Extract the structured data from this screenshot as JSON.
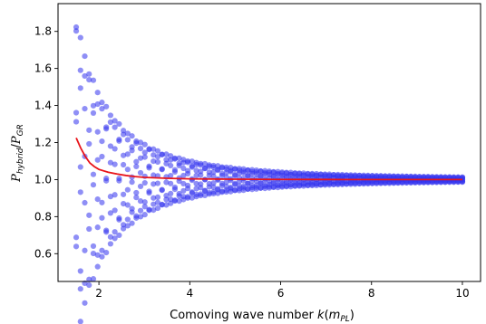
{
  "chart_data": {
    "type": "scatter",
    "title": "",
    "xlabel": {
      "main": "Comoving wave number ",
      "italic": "k",
      "paren_open": "(",
      "italic2": "m",
      "sub": "PL",
      "paren_close": ")"
    },
    "ylabel": {
      "num": "P",
      "num_sub": "hybrid",
      "slash": "/",
      "den": "P",
      "den_sub": "GR"
    },
    "xlim": [
      1.1,
      10.4
    ],
    "ylim": [
      0.45,
      1.95
    ],
    "xticks": [
      2,
      4,
      6,
      8,
      10
    ],
    "yticks": [
      0.6,
      0.8,
      1.0,
      1.2,
      1.4,
      1.6,
      1.8
    ],
    "grid": false,
    "series": [
      {
        "kind": "scatter",
        "color": "#3333ee",
        "opacity": 0.55,
        "k_min": 1.5,
        "k_max": 10.0,
        "n_k": 91,
        "n_phases": 8,
        "amplitude_at_kmin": 0.88,
        "decay_power": 2.2
      },
      {
        "kind": "line",
        "color": "#e8141a",
        "x": [
          1.5,
          1.6,
          1.7,
          1.8,
          1.9,
          2.0,
          2.2,
          2.4,
          2.6,
          2.8,
          3.0,
          3.5,
          4.0,
          4.5,
          5.0,
          6.0,
          7.0,
          8.0,
          9.0,
          10.0
        ],
        "y": [
          1.225,
          1.17,
          1.125,
          1.09,
          1.07,
          1.055,
          1.04,
          1.03,
          1.022,
          1.016,
          1.012,
          1.007,
          1.004,
          1.003,
          1.002,
          1.001,
          1.0005,
          1.0003,
          1.0002,
          1.0001
        ]
      }
    ]
  }
}
